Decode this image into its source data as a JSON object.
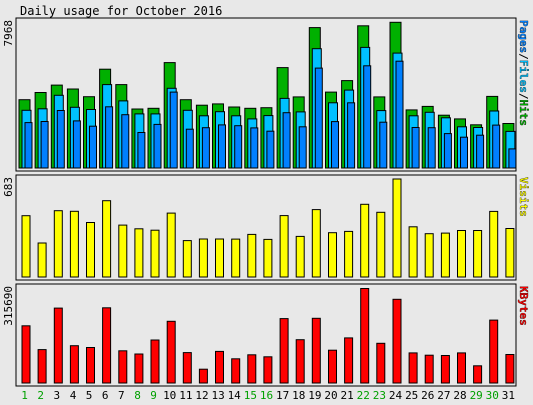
{
  "chart_data": {
    "type": "bar",
    "title": "Daily usage for October 2016",
    "days": [
      1,
      2,
      3,
      4,
      5,
      6,
      7,
      8,
      9,
      10,
      11,
      12,
      13,
      14,
      15,
      16,
      17,
      18,
      19,
      20,
      21,
      22,
      23,
      24,
      25,
      26,
      27,
      28,
      29,
      30,
      31
    ],
    "weekend_days": [
      1,
      2,
      8,
      9,
      15,
      16,
      22,
      23,
      29,
      30
    ],
    "panels": [
      {
        "id": "hits",
        "ylabel_max": "7968",
        "ymax": 7968,
        "legend": [
          {
            "text": "Pages",
            "color": "#0080ff"
          },
          {
            "text": "Files",
            "color": "#00c0ff"
          },
          {
            "text": "Hits",
            "color": "#00b000"
          }
        ],
        "series": [
          {
            "name": "Hits",
            "color": "#00b000",
            "values": [
              3730,
              4122,
              4522,
              4310,
              3890,
              5390,
              4550,
              3220,
              3260,
              5750,
              3730,
              3430,
              3500,
              3330,
              3260,
              3290,
              5480,
              3880,
              7660,
              4140,
              4770,
              7760,
              3880,
              7950,
              3170,
              3360,
              2880,
              2680,
              2360,
              3910,
              2430
            ]
          },
          {
            "name": "Files",
            "color": "#00c0ff",
            "values": [
              3150,
              3230,
              3970,
              3310,
              3190,
              4550,
              3660,
              2950,
              2950,
              4350,
              3150,
              2850,
              3070,
              2850,
              2680,
              2860,
              3800,
              3060,
              6510,
              3560,
              4250,
              6580,
              3130,
              6270,
              2850,
              3040,
              2740,
              2250,
              2210,
              3110,
              2000
            ]
          },
          {
            "name": "Pages",
            "color": "#0080ff",
            "values": [
              2480,
              2540,
              3140,
              2570,
              2280,
              3340,
              2910,
              1940,
              2380,
              4140,
              2120,
              2200,
              2350,
              2310,
              2190,
              2010,
              3020,
              2250,
              5450,
              2530,
              3560,
              5580,
              2500,
              5830,
              2210,
              2200,
              1880,
              1680,
              1790,
              2340,
              1040
            ]
          }
        ]
      },
      {
        "id": "visits",
        "ylabel_max": "683",
        "ymax": 683,
        "legend": [
          {
            "text": "Visits",
            "color": "#ffff00"
          }
        ],
        "series": [
          {
            "name": "Visits",
            "color": "#ffff00",
            "values": [
              427,
              237,
              462,
              458,
              380,
              532,
              362,
              336,
              326,
              445,
              254,
              265,
              265,
              264,
              297,
              262,
              428,
              283,
              470,
              309,
              318,
              507,
              451,
              683,
              350,
              302,
              306,
              324,
              324,
              457,
              338
            ]
          }
        ]
      },
      {
        "id": "kbytes",
        "ylabel_max": "315690",
        "ymax": 315690,
        "legend": [
          {
            "text": "KBytes",
            "color": "#ff0000"
          }
        ],
        "series": [
          {
            "name": "KBytes",
            "color": "#ff0000",
            "values": [
              190000,
              111000,
              249000,
              124000,
              118000,
              250000,
              107000,
              96500,
              143000,
              205000,
              101000,
              46000,
              105000,
              80500,
              93600,
              87100,
              214000,
              144000,
              215000,
              109000,
              150000,
              314000,
              132000,
              278000,
              100000,
              92300,
              91300,
              100000,
              57000,
              209000,
              94800
            ]
          }
        ]
      }
    ]
  }
}
